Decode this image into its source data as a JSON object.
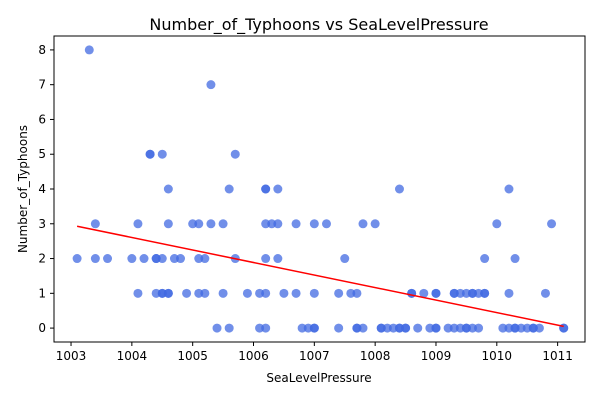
{
  "chart_data": {
    "type": "scatter",
    "title": "Number_of_Typhoons vs SeaLevelPressure",
    "xlabel": "SeaLevelPressure",
    "ylabel": "Number_of_Typhoons",
    "xlim": [
      1002.72,
      1011.45
    ],
    "ylim": [
      -0.4,
      8.4
    ],
    "xticks": [
      1003,
      1004,
      1005,
      1006,
      1007,
      1008,
      1009,
      1010,
      1011
    ],
    "yticks": [
      0,
      1,
      2,
      3,
      4,
      5,
      6,
      7,
      8
    ],
    "grid": false,
    "point_color": "#4169e1",
    "trend_color": "#ff0000",
    "trendline": {
      "x": [
        1003.1,
        1011.1
      ],
      "y": [
        2.93,
        0.05
      ]
    },
    "points": [
      {
        "x": 1003.1,
        "y": 2
      },
      {
        "x": 1003.3,
        "y": 8
      },
      {
        "x": 1003.4,
        "y": 3
      },
      {
        "x": 1003.4,
        "y": 2
      },
      {
        "x": 1003.6,
        "y": 2
      },
      {
        "x": 1004.0,
        "y": 2
      },
      {
        "x": 1004.1,
        "y": 3
      },
      {
        "x": 1004.1,
        "y": 1
      },
      {
        "x": 1004.2,
        "y": 2
      },
      {
        "x": 1004.3,
        "y": 5
      },
      {
        "x": 1004.3,
        "y": 5
      },
      {
        "x": 1004.4,
        "y": 2
      },
      {
        "x": 1004.4,
        "y": 2
      },
      {
        "x": 1004.4,
        "y": 1
      },
      {
        "x": 1004.5,
        "y": 5
      },
      {
        "x": 1004.5,
        "y": 2
      },
      {
        "x": 1004.5,
        "y": 1
      },
      {
        "x": 1004.5,
        "y": 1
      },
      {
        "x": 1004.6,
        "y": 4
      },
      {
        "x": 1004.6,
        "y": 3
      },
      {
        "x": 1004.6,
        "y": 1
      },
      {
        "x": 1004.6,
        "y": 1
      },
      {
        "x": 1004.7,
        "y": 2
      },
      {
        "x": 1004.8,
        "y": 2
      },
      {
        "x": 1004.9,
        "y": 1
      },
      {
        "x": 1005.0,
        "y": 3
      },
      {
        "x": 1005.1,
        "y": 3
      },
      {
        "x": 1005.1,
        "y": 2
      },
      {
        "x": 1005.1,
        "y": 1
      },
      {
        "x": 1005.2,
        "y": 2
      },
      {
        "x": 1005.2,
        "y": 1
      },
      {
        "x": 1005.3,
        "y": 7
      },
      {
        "x": 1005.3,
        "y": 3
      },
      {
        "x": 1005.4,
        "y": 0
      },
      {
        "x": 1005.5,
        "y": 3
      },
      {
        "x": 1005.5,
        "y": 1
      },
      {
        "x": 1005.6,
        "y": 4
      },
      {
        "x": 1005.6,
        "y": 0
      },
      {
        "x": 1005.7,
        "y": 5
      },
      {
        "x": 1005.7,
        "y": 2
      },
      {
        "x": 1005.9,
        "y": 1
      },
      {
        "x": 1006.1,
        "y": 1
      },
      {
        "x": 1006.1,
        "y": 0
      },
      {
        "x": 1006.2,
        "y": 4
      },
      {
        "x": 1006.2,
        "y": 4
      },
      {
        "x": 1006.2,
        "y": 3
      },
      {
        "x": 1006.2,
        "y": 2
      },
      {
        "x": 1006.2,
        "y": 1
      },
      {
        "x": 1006.2,
        "y": 0
      },
      {
        "x": 1006.3,
        "y": 3
      },
      {
        "x": 1006.4,
        "y": 4
      },
      {
        "x": 1006.4,
        "y": 3
      },
      {
        "x": 1006.4,
        "y": 2
      },
      {
        "x": 1006.5,
        "y": 1
      },
      {
        "x": 1006.7,
        "y": 3
      },
      {
        "x": 1006.7,
        "y": 1
      },
      {
        "x": 1006.8,
        "y": 0
      },
      {
        "x": 1006.9,
        "y": 0
      },
      {
        "x": 1007.0,
        "y": 3
      },
      {
        "x": 1007.0,
        "y": 1
      },
      {
        "x": 1007.0,
        "y": 0
      },
      {
        "x": 1007.0,
        "y": 0
      },
      {
        "x": 1007.2,
        "y": 3
      },
      {
        "x": 1007.4,
        "y": 1
      },
      {
        "x": 1007.4,
        "y": 0
      },
      {
        "x": 1007.5,
        "y": 2
      },
      {
        "x": 1007.6,
        "y": 1
      },
      {
        "x": 1007.7,
        "y": 1
      },
      {
        "x": 1007.7,
        "y": 0
      },
      {
        "x": 1007.7,
        "y": 0
      },
      {
        "x": 1007.8,
        "y": 3
      },
      {
        "x": 1007.8,
        "y": 0
      },
      {
        "x": 1008.0,
        "y": 3
      },
      {
        "x": 1008.1,
        "y": 0
      },
      {
        "x": 1008.1,
        "y": 0
      },
      {
        "x": 1008.2,
        "y": 0
      },
      {
        "x": 1008.3,
        "y": 0
      },
      {
        "x": 1008.4,
        "y": 4
      },
      {
        "x": 1008.4,
        "y": 0
      },
      {
        "x": 1008.4,
        "y": 0
      },
      {
        "x": 1008.5,
        "y": 0
      },
      {
        "x": 1008.5,
        "y": 0
      },
      {
        "x": 1008.6,
        "y": 1
      },
      {
        "x": 1008.6,
        "y": 1
      },
      {
        "x": 1008.7,
        "y": 0
      },
      {
        "x": 1008.8,
        "y": 1
      },
      {
        "x": 1008.9,
        "y": 0
      },
      {
        "x": 1009.0,
        "y": 1
      },
      {
        "x": 1009.0,
        "y": 1
      },
      {
        "x": 1009.0,
        "y": 0
      },
      {
        "x": 1009.0,
        "y": 0
      },
      {
        "x": 1009.2,
        "y": 0
      },
      {
        "x": 1009.3,
        "y": 1
      },
      {
        "x": 1009.3,
        "y": 1
      },
      {
        "x": 1009.3,
        "y": 0
      },
      {
        "x": 1009.4,
        "y": 1
      },
      {
        "x": 1009.4,
        "y": 0
      },
      {
        "x": 1009.5,
        "y": 1
      },
      {
        "x": 1009.5,
        "y": 0
      },
      {
        "x": 1009.5,
        "y": 0
      },
      {
        "x": 1009.6,
        "y": 1
      },
      {
        "x": 1009.6,
        "y": 1
      },
      {
        "x": 1009.6,
        "y": 0
      },
      {
        "x": 1009.7,
        "y": 1
      },
      {
        "x": 1009.7,
        "y": 0
      },
      {
        "x": 1009.8,
        "y": 2
      },
      {
        "x": 1009.8,
        "y": 1
      },
      {
        "x": 1009.8,
        "y": 1
      },
      {
        "x": 1010.0,
        "y": 3
      },
      {
        "x": 1010.1,
        "y": 0
      },
      {
        "x": 1010.2,
        "y": 4
      },
      {
        "x": 1010.2,
        "y": 1
      },
      {
        "x": 1010.2,
        "y": 0
      },
      {
        "x": 1010.3,
        "y": 2
      },
      {
        "x": 1010.3,
        "y": 0
      },
      {
        "x": 1010.3,
        "y": 0
      },
      {
        "x": 1010.4,
        "y": 0
      },
      {
        "x": 1010.5,
        "y": 0
      },
      {
        "x": 1010.6,
        "y": 0
      },
      {
        "x": 1010.6,
        "y": 0
      },
      {
        "x": 1010.7,
        "y": 0
      },
      {
        "x": 1010.8,
        "y": 1
      },
      {
        "x": 1010.9,
        "y": 3
      },
      {
        "x": 1011.1,
        "y": 0
      },
      {
        "x": 1011.1,
        "y": 0
      }
    ]
  }
}
